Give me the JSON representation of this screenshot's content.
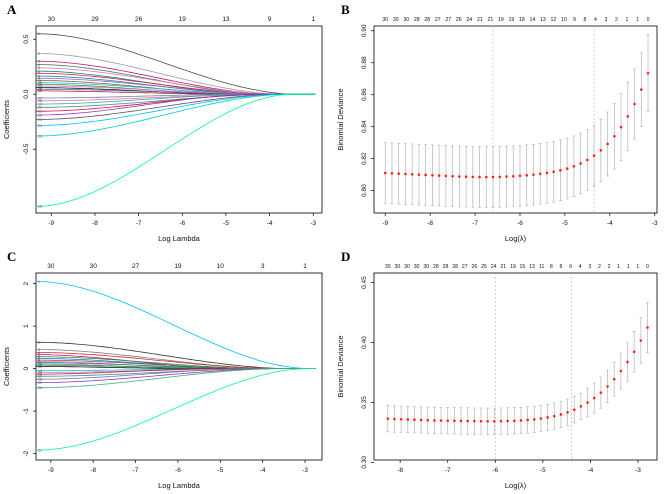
{
  "figure": {
    "background": "#ffffff"
  },
  "chart_data": [
    {
      "panel_label": "A",
      "type": "line",
      "subtype": "lasso-paths",
      "xlabel": "Log Lambda",
      "ylabel": "Coefficients",
      "xlim": [
        -9.35,
        -2.8
      ],
      "ylim": [
        -1.08,
        0.62
      ],
      "xticks": [
        -9,
        -8,
        -7,
        -6,
        -5,
        -4,
        -3
      ],
      "xtick_labels": [
        "-9",
        "-8",
        "-7",
        "-6",
        "-5",
        "-4",
        "-3"
      ],
      "yticks": [
        -0.5,
        0.0,
        0.5
      ],
      "ytick_labels": [
        "-0.5",
        "0.0",
        "0.5"
      ],
      "top_axis_labels": [
        "30",
        "29",
        "26",
        "19",
        "13",
        "9",
        "1"
      ],
      "line_end_x": -2.95,
      "lines": [
        {
          "color": "#4d4d4d",
          "start": 0.55,
          "zero_x": -3.35
        },
        {
          "color": "#9e9e9e",
          "start": 0.37,
          "zero_x": -3.6
        },
        {
          "color": "#c71585",
          "start": 0.3,
          "zero_x": -3.8
        },
        {
          "color": "#2e8b57",
          "start": 0.27,
          "zero_x": -4.0
        },
        {
          "color": "#ff69b4",
          "start": 0.24,
          "zero_x": -3.7
        },
        {
          "color": "#008b8b",
          "start": 0.21,
          "zero_x": -4.2
        },
        {
          "color": "#d62728",
          "start": 0.19,
          "zero_x": -3.9
        },
        {
          "color": "#1f77b4",
          "start": 0.165,
          "zero_x": -4.1
        },
        {
          "color": "#9467bd",
          "start": 0.145,
          "zero_x": -3.75
        },
        {
          "color": "#8c564b",
          "start": 0.125,
          "zero_x": -4.3
        },
        {
          "color": "#17becf",
          "start": 0.105,
          "zero_x": -3.95
        },
        {
          "color": "#2ca02c",
          "start": 0.09,
          "zero_x": -4.5
        },
        {
          "color": "#e377c2",
          "start": 0.075,
          "zero_x": -4.05
        },
        {
          "color": "#111111",
          "start": 0.06,
          "zero_x": -4.6
        },
        {
          "color": "#6a5acd",
          "start": 0.045,
          "zero_x": -3.9
        },
        {
          "color": "#b22222",
          "start": 0.03,
          "zero_x": -4.8
        },
        {
          "color": "#708090",
          "start": -0.035,
          "zero_x": -4.4
        },
        {
          "color": "#da70d6",
          "start": -0.06,
          "zero_x": -3.85
        },
        {
          "color": "#3cb371",
          "start": -0.09,
          "zero_x": -4.15
        },
        {
          "color": "#4682b4",
          "start": -0.12,
          "zero_x": -3.7
        },
        {
          "color": "#dc143c",
          "start": -0.155,
          "zero_x": -4.0
        },
        {
          "color": "#9932cc",
          "start": -0.19,
          "zero_x": -4.25
        },
        {
          "color": "#555555",
          "start": -0.23,
          "zero_x": -3.6
        },
        {
          "color": "#00bfff",
          "start": -0.285,
          "zero_x": -3.55
        },
        {
          "color": "#00ced1",
          "start": -0.38,
          "zero_x": -3.5
        },
        {
          "color": "#00fa9a",
          "start": -1.02,
          "zero_x": -3.45
        }
      ]
    },
    {
      "panel_label": "B",
      "type": "scatter",
      "subtype": "cv-curve",
      "xlabel": "Log(λ)",
      "ylabel": "Binomial Deviance",
      "xlim": [
        -9.25,
        -2.95
      ],
      "ylim": [
        0.786,
        0.903
      ],
      "xticks": [
        -9,
        -8,
        -7,
        -6,
        -5,
        -4,
        -3
      ],
      "xtick_labels": [
        "-9",
        "-8",
        "-7",
        "-6",
        "-5",
        "-4",
        "-3"
      ],
      "yticks": [
        0.8,
        0.82,
        0.84,
        0.86,
        0.88,
        0.9
      ],
      "ytick_labels": [
        "0.80",
        "0.82",
        "0.84",
        "0.86",
        "0.88",
        "0.90"
      ],
      "top_axis_labels": [
        "30",
        "30",
        "30",
        "28",
        "28",
        "27",
        "27",
        "26",
        "24",
        "21",
        "21",
        "19",
        "19",
        "18",
        "14",
        "13",
        "12",
        "10",
        "9",
        "8",
        "4",
        "3",
        "2",
        "1",
        "1",
        "0"
      ],
      "lambda_lines": [
        -6.6,
        -4.35
      ],
      "cv": {
        "x": [
          -9.0,
          -8.85,
          -8.7,
          -8.55,
          -8.4,
          -8.25,
          -8.1,
          -7.95,
          -7.8,
          -7.65,
          -7.5,
          -7.35,
          -7.2,
          -7.05,
          -6.9,
          -6.75,
          -6.6,
          -6.45,
          -6.3,
          -6.15,
          -6.0,
          -5.85,
          -5.7,
          -5.55,
          -5.4,
          -5.25,
          -5.1,
          -4.95,
          -4.8,
          -4.65,
          -4.5,
          -4.35,
          -4.2,
          -4.05,
          -3.9,
          -3.75,
          -3.6,
          -3.45,
          -3.3,
          -3.15
        ],
        "mean": [
          0.811,
          0.8108,
          0.8106,
          0.8104,
          0.8102,
          0.81,
          0.8098,
          0.8096,
          0.8094,
          0.8092,
          0.809,
          0.8088,
          0.8087,
          0.8086,
          0.8085,
          0.8085,
          0.8085,
          0.8086,
          0.8088,
          0.809,
          0.8093,
          0.8096,
          0.81,
          0.8105,
          0.8111,
          0.8118,
          0.8127,
          0.8138,
          0.8152,
          0.817,
          0.8192,
          0.8219,
          0.8252,
          0.8292,
          0.834,
          0.8397,
          0.8464,
          0.8542,
          0.8632,
          0.8735
        ],
        "err": [
          0.019,
          0.019,
          0.019,
          0.019,
          0.019,
          0.019,
          0.019,
          0.019,
          0.019,
          0.019,
          0.019,
          0.019,
          0.019,
          0.019,
          0.019,
          0.019,
          0.019,
          0.019,
          0.019,
          0.019,
          0.019,
          0.019,
          0.019,
          0.019,
          0.019,
          0.019,
          0.019,
          0.019,
          0.019,
          0.019,
          0.019,
          0.019,
          0.0195,
          0.02,
          0.0205,
          0.021,
          0.0215,
          0.022,
          0.023,
          0.024
        ]
      }
    },
    {
      "panel_label": "C",
      "type": "line",
      "subtype": "lasso-paths",
      "xlabel": "Log Lambda",
      "ylabel": "Coefficients",
      "xlim": [
        -9.35,
        -2.6
      ],
      "ylim": [
        -2.15,
        2.25
      ],
      "xticks": [
        -9,
        -8,
        -7,
        -6,
        -5,
        -4,
        -3
      ],
      "xtick_labels": [
        "-9",
        "-8",
        "-7",
        "-6",
        "-5",
        "-4",
        "-3"
      ],
      "yticks": [
        -2,
        -1,
        0,
        1,
        2
      ],
      "ytick_labels": [
        "-2",
        "-1",
        "0",
        "1",
        "2"
      ],
      "top_axis_labels": [
        "30",
        "30",
        "27",
        "19",
        "10",
        "3",
        "1"
      ],
      "line_end_x": -2.75,
      "lines": [
        {
          "color": "#00bfff",
          "start": 2.05,
          "zero_x": -2.85
        },
        {
          "color": "#333333",
          "start": 0.62,
          "zero_x": -3.3
        },
        {
          "color": "#808080",
          "start": 0.45,
          "zero_x": -3.6
        },
        {
          "color": "#d62728",
          "start": 0.38,
          "zero_x": -3.5
        },
        {
          "color": "#c71585",
          "start": 0.33,
          "zero_x": -4.6
        },
        {
          "color": "#2e8b57",
          "start": 0.28,
          "zero_x": -3.8
        },
        {
          "color": "#1f77b4",
          "start": 0.24,
          "zero_x": -4.2
        },
        {
          "color": "#8c564b",
          "start": 0.2,
          "zero_x": -3.9
        },
        {
          "color": "#ff69b4",
          "start": 0.17,
          "zero_x": -4.8
        },
        {
          "color": "#008b8b",
          "start": 0.14,
          "zero_x": -4.0
        },
        {
          "color": "#9467bd",
          "start": 0.11,
          "zero_x": -5.2
        },
        {
          "color": "#2ca02c",
          "start": 0.08,
          "zero_x": -4.3
        },
        {
          "color": "#111111",
          "start": 0.05,
          "zero_x": -5.5
        },
        {
          "color": "#17becf",
          "start": -0.05,
          "zero_x": -4.5
        },
        {
          "color": "#da70d6",
          "start": -0.09,
          "zero_x": -3.9
        },
        {
          "color": "#b22222",
          "start": -0.13,
          "zero_x": -4.9
        },
        {
          "color": "#4682b4",
          "start": -0.18,
          "zero_x": -3.7
        },
        {
          "color": "#708090",
          "start": -0.25,
          "zero_x": -4.1
        },
        {
          "color": "#9932cc",
          "start": -0.33,
          "zero_x": -3.6
        },
        {
          "color": "#3cb371",
          "start": -0.45,
          "zero_x": -3.5
        },
        {
          "color": "#00fa9a",
          "start": -1.92,
          "zero_x": -2.9
        }
      ]
    },
    {
      "panel_label": "D",
      "type": "scatter",
      "subtype": "cv-curve",
      "xlabel": "Log(λ)",
      "ylabel": "Binomial Deviance",
      "xlim": [
        -8.55,
        -2.6
      ],
      "ylim": [
        0.302,
        0.458
      ],
      "xticks": [
        -8,
        -7,
        -6,
        -5,
        -4,
        -3
      ],
      "xtick_labels": [
        "-8",
        "-7",
        "-6",
        "-5",
        "-4",
        "-3"
      ],
      "yticks": [
        0.3,
        0.35,
        0.4,
        0.45
      ],
      "ytick_labels": [
        "0.30",
        "0.35",
        "0.40",
        "0.45"
      ],
      "top_axis_labels": [
        "30",
        "30",
        "30",
        "30",
        "30",
        "28",
        "28",
        "28",
        "27",
        "26",
        "25",
        "24",
        "21",
        "19",
        "15",
        "13",
        "11",
        "8",
        "8",
        "6",
        "4",
        "3",
        "2",
        "2",
        "1",
        "1",
        "1",
        "0"
      ],
      "lambda_lines": [
        -6.0,
        -4.4
      ],
      "cv": {
        "x": [
          -8.26,
          -8.12,
          -7.98,
          -7.84,
          -7.7,
          -7.56,
          -7.42,
          -7.28,
          -7.14,
          -7.0,
          -6.86,
          -6.72,
          -6.58,
          -6.44,
          -6.3,
          -6.16,
          -6.02,
          -5.88,
          -5.74,
          -5.6,
          -5.46,
          -5.32,
          -5.18,
          -5.04,
          -4.9,
          -4.76,
          -4.62,
          -4.48,
          -4.34,
          -4.2,
          -4.06,
          -3.92,
          -3.78,
          -3.64,
          -3.5,
          -3.36,
          -3.22,
          -3.08,
          -2.94,
          -2.8
        ],
        "mean": [
          0.3365,
          0.3362,
          0.336,
          0.3358,
          0.3356,
          0.3354,
          0.3352,
          0.335,
          0.3349,
          0.3348,
          0.3347,
          0.3346,
          0.3345,
          0.3344,
          0.3344,
          0.3343,
          0.3343,
          0.3344,
          0.3345,
          0.3347,
          0.335,
          0.3354,
          0.3359,
          0.3366,
          0.3375,
          0.3386,
          0.34,
          0.3418,
          0.344,
          0.3467,
          0.3499,
          0.3537,
          0.3582,
          0.3634,
          0.3694,
          0.3762,
          0.3838,
          0.3923,
          0.4017,
          0.4125
        ],
        "err": [
          0.011,
          0.011,
          0.011,
          0.011,
          0.011,
          0.011,
          0.011,
          0.011,
          0.011,
          0.011,
          0.011,
          0.011,
          0.011,
          0.011,
          0.011,
          0.011,
          0.011,
          0.011,
          0.011,
          0.011,
          0.011,
          0.011,
          0.011,
          0.011,
          0.011,
          0.011,
          0.011,
          0.011,
          0.011,
          0.011,
          0.012,
          0.0125,
          0.013,
          0.0135,
          0.014,
          0.015,
          0.016,
          0.017,
          0.019,
          0.021
        ]
      }
    }
  ]
}
